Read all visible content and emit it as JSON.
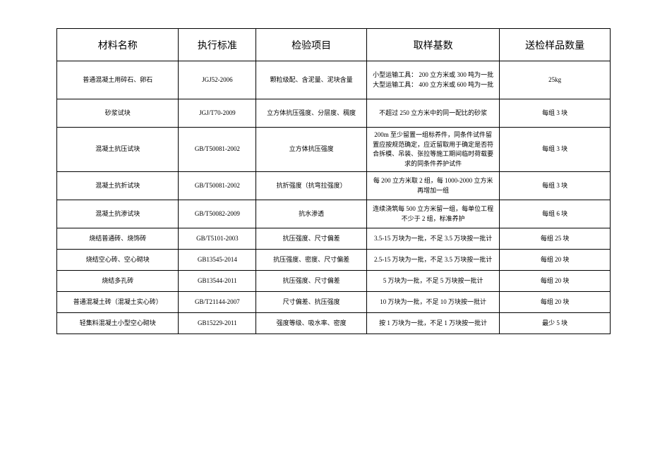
{
  "table": {
    "background_color": "#ffffff",
    "border_color": "#000000",
    "header_fontsize": 14,
    "body_fontsize": 9,
    "font_family": "SimSun",
    "columns": [
      {
        "key": "name",
        "label": "材料名称",
        "width_pct": 22
      },
      {
        "key": "standard",
        "label": "执行标准",
        "width_pct": 14
      },
      {
        "key": "items",
        "label": "检验项目",
        "width_pct": 20
      },
      {
        "key": "sampling",
        "label": "取样基数",
        "width_pct": 24
      },
      {
        "key": "quantity",
        "label": "送检样品数量",
        "width_pct": 20
      }
    ],
    "rows": [
      {
        "row_height": "tall",
        "name": "普通混凝土用碎石、卵石",
        "standard": "JGJ52-2006",
        "items": "颗粒级配、含泥量、泥块含量",
        "sampling": "小型运输工具： 200 立方米或  300 吨为一批\n大型运输工具： 400 立方米或  600 吨为一批",
        "quantity": "25kg"
      },
      {
        "row_height": "med",
        "name": "砂浆试块",
        "standard": "JGJ/T70-2009",
        "items": "立方体抗压强度、分层度、稠度",
        "sampling": "不超过 250 立方米中的同一配比的砂浆",
        "quantity": "每组 3 块"
      },
      {
        "row_height": "tall",
        "name": "混凝土抗压试块",
        "standard": "GB/T50081-2002",
        "items": "立方体抗压强度",
        "sampling": "200m 至少留置一组标养件，同条件试件留置应按规范确定，应近留取用于确定是否符合拆模、吊装、张拉等施工期间临时荷载要求的同条件养护试件",
        "quantity": "每组 3 块"
      },
      {
        "row_height": "med",
        "name": "混凝土抗折试块",
        "standard": "GB/T50081-2002",
        "items": "抗折强度（抗弯拉强度）",
        "sampling": "每 200 立方米取  2 组，每 1000-2000 立方米再增加一组",
        "quantity": "每组 3 块"
      },
      {
        "row_height": "med",
        "name": "混凝土抗渗试块",
        "standard": "GB/T50082-2009",
        "items": "抗水渗透",
        "sampling": "连续浇筑每  500 立方米留一组，每单位工程不少于  2 组，标准养护",
        "quantity": "每组 6 块"
      },
      {
        "row_height": "short",
        "name": "烧结普通砖、烧饰砖",
        "standard": "GB/T5101-2003",
        "items": "抗压强度、尺寸偏差",
        "sampling": "3.5-15 万块为一批，不足     3.5 万块按一批计",
        "quantity": "每组 25 块"
      },
      {
        "row_height": "short",
        "name": "烧结空心砖、空心砌块",
        "standard": "GB13545-2014",
        "items": "抗压强度、密度、尺寸偏差",
        "sampling": "2.5-15 万块为一批，不足     3.5 万块按一批计",
        "quantity": "每组 20 块"
      },
      {
        "row_height": "short",
        "name": "烧结多孔砖",
        "standard": "GB13544-2011",
        "items": "抗压强度、尺寸偏差",
        "sampling": "5 万块为一批，不足       5 万块按一批计",
        "quantity": "每组  20 块"
      },
      {
        "row_height": "short",
        "name": "普通混凝土砖（混凝土实心砖）",
        "standard": "GB/T21144-2007",
        "items": "尺寸偏差、抗压强度",
        "sampling": "10 万块为一批，不足      10 万块按一批计",
        "quantity": "每组 20 块"
      },
      {
        "row_height": "short",
        "name": "轻集料混凝土小型空心砌块",
        "standard": "GB15229-2011",
        "items": "强度等级、吸水率、密度",
        "sampling": "按 1 万块为一批，不足    1 万块按一批计",
        "quantity": "最少 5 块"
      }
    ]
  }
}
